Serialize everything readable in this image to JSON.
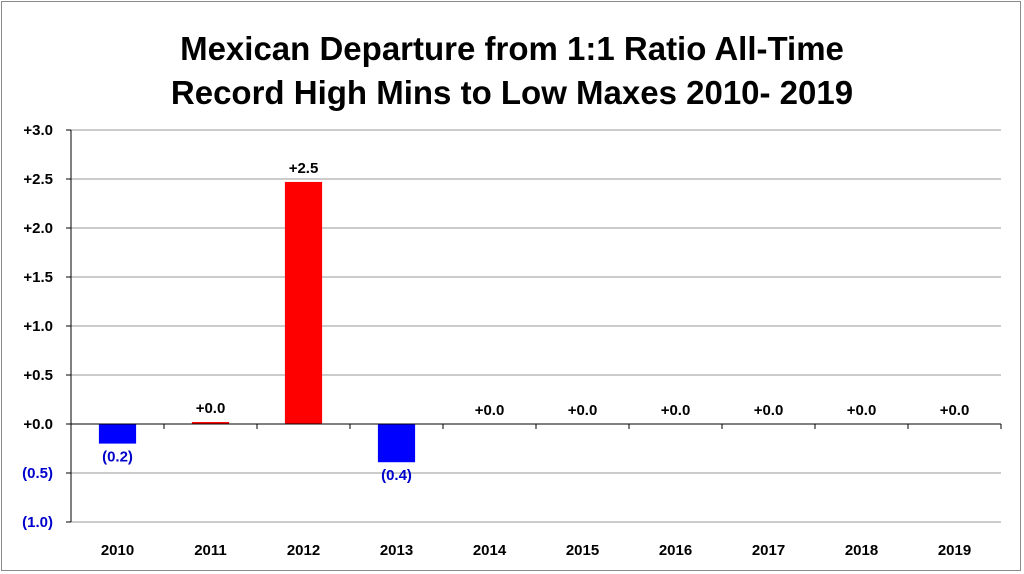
{
  "chart_data": {
    "type": "bar",
    "title_line1": "Mexican Departure from 1:1 Ratio All-Time",
    "title_line2": "Record High Mins to Low Maxes 2010- 2019",
    "categories": [
      "2010",
      "2011",
      "2012",
      "2013",
      "2014",
      "2015",
      "2016",
      "2017",
      "2018",
      "2019"
    ],
    "values": [
      -0.2,
      0.02,
      2.47,
      -0.39,
      0.0,
      0.0,
      0.0,
      0.0,
      0.0,
      0.0
    ],
    "data_labels": [
      "(0.2)",
      "+0.0",
      "+2.5",
      "(0.4)",
      "+0.0",
      "+0.0",
      "+0.0",
      "+0.0",
      "+0.0",
      "+0.0"
    ],
    "ylim": [
      -1.0,
      3.0
    ],
    "yticks": [
      3.0,
      2.5,
      2.0,
      1.5,
      1.0,
      0.5,
      0.0,
      -0.5,
      -1.0
    ],
    "ytick_labels": [
      "+3.0",
      "+2.5",
      "+2.0",
      "+1.5",
      "+1.0",
      "+0.5",
      "+0.0",
      "(0.5)",
      "(1.0)"
    ],
    "grid": true,
    "colors": {
      "positive": "#ff0000",
      "negative": "#0000ff",
      "positive_label": "#000000",
      "negative_label": "#0000cc",
      "grid": "#9a9a9a"
    }
  }
}
